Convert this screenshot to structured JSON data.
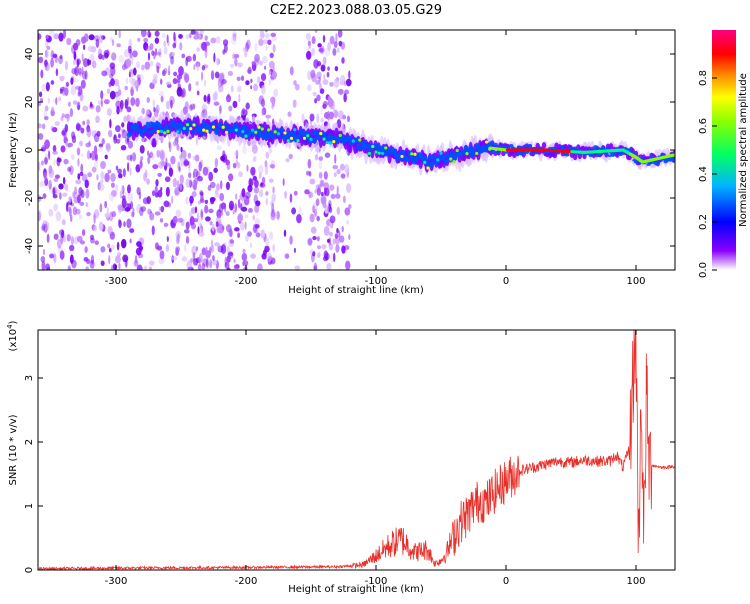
{
  "title": "C2E2.2023.088.03.05.G29",
  "colors": {
    "snr_line": "#e8302a",
    "spectrogram_scale": [
      "#ffffff",
      "#7b00ff",
      "#0000ff",
      "#00c8ff",
      "#00ff80",
      "#80ff00",
      "#ffff00",
      "#ff8000",
      "#ff0000",
      "#ff0080"
    ]
  },
  "chart_data": [
    {
      "type": "heatmap",
      "xlabel": "Height of straight line (km)",
      "ylabel": "Frequency (Hz)",
      "xlim": [
        -360,
        130
      ],
      "ylim": [
        -50,
        50
      ],
      "x_ticks": [
        "-300",
        "-200",
        "-100",
        "0",
        "100"
      ],
      "y_ticks": [
        "40",
        "20",
        "0",
        "-20",
        "-40"
      ],
      "colorbar": {
        "label": "Normalized spectral amplitude",
        "range": [
          0.0,
          1.0
        ],
        "ticks": [
          "0.0",
          "0.2",
          "0.4",
          "0.6",
          "0.8"
        ]
      },
      "ridge": {
        "x": [
          -290,
          -250,
          -200,
          -160,
          -130,
          -100,
          -80,
          -60,
          -45,
          -30,
          -15,
          0,
          30,
          60,
          90,
          100,
          105,
          130
        ],
        "frequency_hz": [
          8,
          10,
          8,
          6,
          5,
          0,
          -2,
          -5,
          -3,
          -1,
          1,
          0,
          0,
          -1,
          0,
          -3,
          -5,
          -2
        ]
      },
      "noise_region_x": [
        -360,
        -120
      ]
    },
    {
      "type": "line",
      "xlabel": "Height of straight line (km)",
      "ylabel": "SNR (10 * v/v)",
      "y_multiplier": "(x10",
      "y_multiplier_exp": "4",
      "y_multiplier_close": ")",
      "xlim": [
        -360,
        130
      ],
      "ylim": [
        0,
        3.75
      ],
      "x_ticks": [
        "-300",
        "-200",
        "-100",
        "0",
        "100"
      ],
      "y_ticks": [
        "0",
        "1",
        "2",
        "3"
      ],
      "series": [
        {
          "x": [
            -360,
            -300,
            -200,
            -130,
            -110,
            -100,
            -90,
            -80,
            -70,
            -60,
            -55,
            -50,
            -45,
            -40,
            -35,
            -30,
            -25,
            -20,
            -15,
            -10,
            -5,
            0,
            10,
            20,
            30,
            40,
            50,
            60,
            70,
            80,
            85,
            90,
            95,
            98,
            100,
            102,
            104,
            106,
            108,
            110,
            120,
            130
          ],
          "y": [
            0.02,
            0.03,
            0.04,
            0.05,
            0.08,
            0.22,
            0.38,
            0.48,
            0.28,
            0.32,
            0.1,
            0.15,
            0.3,
            0.55,
            0.75,
            0.85,
            1.0,
            1.1,
            1.05,
            1.2,
            1.3,
            1.4,
            1.55,
            1.6,
            1.65,
            1.7,
            1.68,
            1.72,
            1.7,
            1.7,
            1.8,
            1.6,
            1.9,
            3.1,
            3.7,
            0.3,
            2.9,
            0.4,
            2.8,
            1.65,
            1.6,
            1.62
          ]
        }
      ]
    }
  ]
}
